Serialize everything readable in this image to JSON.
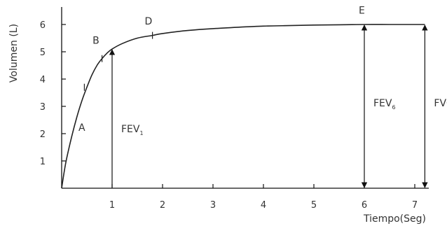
{
  "chart_data": {
    "type": "line",
    "xlabel": "Tiempo(Seg)",
    "ylabel": "Volumen (L)",
    "xlim": [
      0,
      7.3
    ],
    "ylim": [
      0,
      6.3
    ],
    "x_ticks": [
      1,
      2,
      3,
      4,
      5,
      6,
      7
    ],
    "y_ticks": [
      1,
      2,
      3,
      4,
      5,
      6
    ],
    "grid": false,
    "series": [
      {
        "x": [
          0,
          0.05,
          0.1,
          0.2,
          0.3,
          0.4,
          0.5,
          0.6,
          0.7,
          0.8,
          0.9,
          1.0,
          1.2,
          1.5,
          1.8,
          2.0,
          2.5,
          3.0,
          3.5,
          4.0,
          4.5,
          5.0,
          5.5,
          6.0,
          6.5,
          7.0,
          7.2
        ],
        "y": [
          0,
          0.6,
          1.1,
          1.9,
          2.6,
          3.2,
          3.7,
          4.15,
          4.5,
          4.75,
          4.95,
          5.1,
          5.3,
          5.5,
          5.6,
          5.67,
          5.78,
          5.85,
          5.9,
          5.94,
          5.96,
          5.98,
          5.99,
          6.0,
          6.0,
          6.0,
          6.0
        ]
      }
    ],
    "tick_marks": [
      {
        "x": 0.45,
        "y": 3.7
      },
      {
        "x": 0.8,
        "y": 4.75
      },
      {
        "x": 1.8,
        "y": 5.6
      }
    ],
    "point_labels": [
      {
        "text": "A",
        "x": 0.4,
        "y": 2.1
      },
      {
        "text": "B",
        "x": 0.68,
        "y": 5.3
      },
      {
        "text": "D",
        "x": 1.72,
        "y": 6.0
      },
      {
        "text": "E",
        "x": 5.95,
        "y": 6.4
      }
    ],
    "arrows": [
      {
        "x": 1.0,
        "label": "FEV",
        "sub": "1",
        "label_y": 2.05
      },
      {
        "x": 6.0,
        "label": "FEV",
        "sub": "6",
        "label_y": 3.0
      },
      {
        "x": 7.2,
        "label": "FVC",
        "sub": "",
        "label_y": 3.0
      }
    ]
  }
}
